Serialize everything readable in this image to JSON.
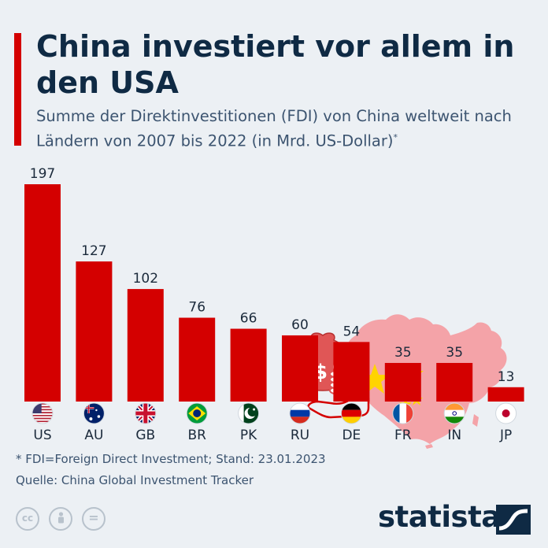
{
  "header": {
    "title": "China investiert vor allem in den USA",
    "subtitle": "Summe der Direktinvestitionen (FDI) von China weltweit nach Ländern von 2007 bis 2022 (in Mrd. US-Dollar)",
    "subtitle_mark": "*"
  },
  "chart_data": {
    "type": "bar",
    "title": "China investiert vor allem in den USA",
    "categories": [
      "US",
      "AU",
      "GB",
      "BR",
      "PK",
      "RU",
      "DE",
      "FR",
      "IN",
      "JP"
    ],
    "values": [
      197,
      127,
      102,
      76,
      66,
      60,
      54,
      35,
      35,
      13
    ],
    "ylim": [
      0,
      197
    ],
    "bar_color": "#d40000",
    "grid": false,
    "data_labels": true
  },
  "flags": [
    "us-flag-icon",
    "au-flag-icon",
    "gb-flag-icon",
    "br-flag-icon",
    "pk-flag-icon",
    "ru-flag-icon",
    "de-flag-icon",
    "fr-flag-icon",
    "in-flag-icon",
    "jp-flag-icon"
  ],
  "footer": {
    "footnote": "* FDI=Foreign Direct Investment; Stand: 23.01.2023",
    "source": "Quelle: China Global Investment Tracker",
    "brand": "statista",
    "cc_labels": [
      "cc",
      "",
      "="
    ]
  },
  "colors": {
    "accent": "#d40000",
    "text": "#0f2a44",
    "background": "#ecf0f4",
    "map": "#f4a3a8"
  }
}
